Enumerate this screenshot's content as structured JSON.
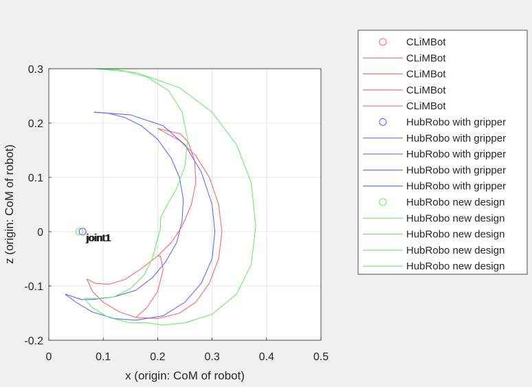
{
  "chart_data": {
    "type": "line",
    "xlabel": "x (origin: CoM of robot)",
    "ylabel": "z (origin: CoM of robot)",
    "xlim": [
      0,
      0.5
    ],
    "ylim": [
      -0.2,
      0.3
    ],
    "x_ticks": [
      "0",
      "0.1",
      "0.2",
      "0.3",
      "0.4",
      "0.5"
    ],
    "y_ticks": [
      "-0.2",
      "-0.1",
      "0",
      "0.1",
      "0.2",
      "0.3"
    ],
    "grid": true,
    "legend_position": "outside-top-right",
    "colors": {
      "CLiMBot": "#ff6666",
      "HubRobo with gripper": "#6666ff",
      "HubRobo new design": "#66ee66"
    },
    "annotations": [
      {
        "text": "joint1",
        "x": 0.068,
        "y": -0.018
      },
      {
        "text": "joint1",
        "x": 0.069,
        "y": -0.018
      },
      {
        "text": "joint1",
        "x": 0.07,
        "y": -0.018
      }
    ],
    "series": [
      {
        "name": "CLiMBot",
        "kind": "marker",
        "color": "#ff6666",
        "points": [
          [
            0.062,
            0.0
          ]
        ]
      },
      {
        "name": "CLiMBot",
        "kind": "line",
        "color": "#ff6666",
        "points": [
          [
            0.07,
            -0.087
          ],
          [
            0.085,
            -0.095
          ],
          [
            0.11,
            -0.097
          ],
          [
            0.14,
            -0.088
          ],
          [
            0.17,
            -0.068
          ],
          [
            0.2,
            -0.045
          ],
          [
            0.225,
            -0.02
          ],
          [
            0.245,
            0.01
          ],
          [
            0.262,
            0.05
          ],
          [
            0.27,
            0.09
          ],
          [
            0.268,
            0.13
          ],
          [
            0.256,
            0.165
          ],
          [
            0.242,
            0.18
          ],
          [
            0.2,
            0.19
          ]
        ]
      },
      {
        "name": "CLiMBot",
        "kind": "line",
        "color": "#ff6666",
        "points": [
          [
            0.2,
            0.19
          ],
          [
            0.24,
            0.168
          ],
          [
            0.27,
            0.14
          ],
          [
            0.295,
            0.1
          ],
          [
            0.312,
            0.05
          ],
          [
            0.318,
            0.0
          ],
          [
            0.312,
            -0.05
          ],
          [
            0.295,
            -0.095
          ],
          [
            0.27,
            -0.13
          ],
          [
            0.24,
            -0.15
          ],
          [
            0.2,
            -0.16
          ],
          [
            0.16,
            -0.158
          ]
        ]
      },
      {
        "name": "CLiMBot",
        "kind": "line",
        "color": "#ff6666",
        "points": [
          [
            0.07,
            -0.087
          ],
          [
            0.08,
            -0.11
          ],
          [
            0.1,
            -0.13
          ],
          [
            0.13,
            -0.148
          ],
          [
            0.16,
            -0.158
          ]
        ]
      },
      {
        "name": "CLiMBot",
        "kind": "line",
        "color": "#ff6666",
        "points": [
          [
            0.16,
            -0.158
          ],
          [
            0.18,
            -0.14
          ],
          [
            0.2,
            -0.11
          ],
          [
            0.21,
            -0.07
          ],
          [
            0.205,
            -0.045
          ],
          [
            0.2,
            -0.045
          ]
        ]
      },
      {
        "name": "HubRobo with gripper",
        "kind": "marker",
        "color": "#6666ff",
        "points": [
          [
            0.062,
            0.0
          ]
        ]
      },
      {
        "name": "HubRobo with gripper",
        "kind": "line",
        "color": "#6666ff",
        "points": [
          [
            0.083,
            0.22
          ],
          [
            0.11,
            0.218
          ],
          [
            0.14,
            0.21
          ],
          [
            0.17,
            0.195
          ],
          [
            0.2,
            0.17
          ],
          [
            0.225,
            0.135
          ],
          [
            0.24,
            0.1
          ],
          [
            0.247,
            0.06
          ],
          [
            0.245,
            0.02
          ],
          [
            0.235,
            -0.02
          ],
          [
            0.215,
            -0.055
          ],
          [
            0.19,
            -0.085
          ],
          [
            0.16,
            -0.108
          ],
          [
            0.12,
            -0.12
          ],
          [
            0.08,
            -0.125
          ]
        ]
      },
      {
        "name": "HubRobo with gripper",
        "kind": "line",
        "color": "#6666ff",
        "points": [
          [
            0.083,
            0.22
          ],
          [
            0.15,
            0.215
          ],
          [
            0.21,
            0.195
          ],
          [
            0.25,
            0.16
          ],
          [
            0.28,
            0.11
          ],
          [
            0.3,
            0.05
          ],
          [
            0.305,
            0.0
          ],
          [
            0.3,
            -0.05
          ],
          [
            0.28,
            -0.095
          ],
          [
            0.25,
            -0.13
          ],
          [
            0.21,
            -0.155
          ],
          [
            0.16,
            -0.163
          ],
          [
            0.12,
            -0.16
          ]
        ]
      },
      {
        "name": "HubRobo with gripper",
        "kind": "line",
        "color": "#6666ff",
        "points": [
          [
            0.03,
            -0.115
          ],
          [
            0.05,
            -0.13
          ],
          [
            0.08,
            -0.148
          ],
          [
            0.12,
            -0.16
          ]
        ]
      },
      {
        "name": "HubRobo with gripper",
        "kind": "line",
        "color": "#6666ff",
        "points": [
          [
            0.03,
            -0.115
          ],
          [
            0.06,
            -0.125
          ],
          [
            0.08,
            -0.125
          ]
        ]
      },
      {
        "name": "HubRobo new design",
        "kind": "marker",
        "color": "#66ee66",
        "points": [
          [
            0.056,
            0.0
          ]
        ]
      },
      {
        "name": "HubRobo new design",
        "kind": "line",
        "color": "#66ee66",
        "points": [
          [
            0.085,
            0.3
          ],
          [
            0.13,
            0.298
          ],
          [
            0.18,
            0.285
          ],
          [
            0.22,
            0.26
          ],
          [
            0.245,
            0.22
          ],
          [
            0.255,
            0.17
          ],
          [
            0.25,
            0.12
          ],
          [
            0.235,
            0.08
          ],
          [
            0.215,
            0.045
          ],
          [
            0.205,
            0.025
          ],
          [
            0.205,
            0.005
          ]
        ]
      },
      {
        "name": "HubRobo new design",
        "kind": "line",
        "color": "#66ee66",
        "points": [
          [
            0.085,
            0.3
          ],
          [
            0.16,
            0.293
          ],
          [
            0.24,
            0.265
          ],
          [
            0.3,
            0.22
          ],
          [
            0.345,
            0.16
          ],
          [
            0.372,
            0.09
          ],
          [
            0.38,
            0.01
          ],
          [
            0.372,
            -0.06
          ],
          [
            0.345,
            -0.115
          ],
          [
            0.3,
            -0.152
          ],
          [
            0.25,
            -0.168
          ],
          [
            0.21,
            -0.172
          ],
          [
            0.18,
            -0.168
          ]
        ]
      },
      {
        "name": "HubRobo new design",
        "kind": "line",
        "color": "#66ee66",
        "points": [
          [
            0.205,
            0.005
          ],
          [
            0.198,
            -0.02
          ],
          [
            0.19,
            -0.05
          ],
          [
            0.175,
            -0.08
          ],
          [
            0.15,
            -0.105
          ],
          [
            0.12,
            -0.12
          ],
          [
            0.09,
            -0.123
          ],
          [
            0.065,
            -0.123
          ]
        ]
      },
      {
        "name": "HubRobo new design",
        "kind": "line",
        "color": "#66ee66",
        "points": [
          [
            0.065,
            -0.123
          ],
          [
            0.08,
            -0.14
          ],
          [
            0.11,
            -0.158
          ],
          [
            0.15,
            -0.168
          ],
          [
            0.18,
            -0.168
          ]
        ]
      }
    ]
  }
}
